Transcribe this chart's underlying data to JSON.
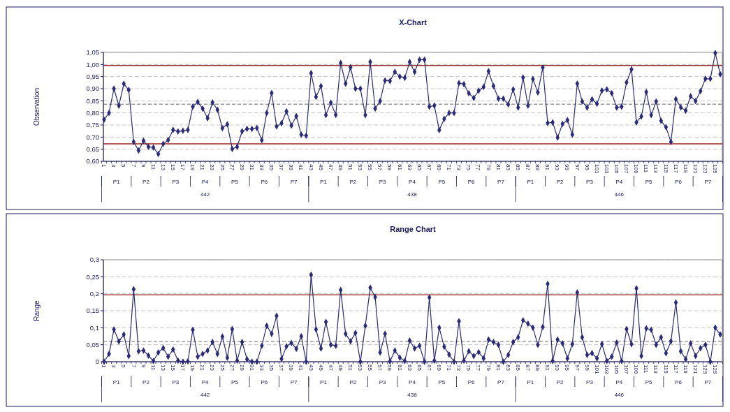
{
  "chart_data": [
    {
      "type": "line",
      "title": "X-Chart",
      "ylabel": "Observation",
      "categories": [
        "1",
        null,
        "3",
        null,
        "5",
        null,
        "7",
        null,
        "9",
        null,
        "11",
        null,
        "13",
        null,
        "15",
        null,
        "17",
        null,
        "19",
        null,
        "21",
        null,
        "23",
        null,
        "25",
        null,
        "27",
        null,
        "29",
        null,
        "31",
        null,
        "33",
        null,
        "35",
        null,
        "37",
        null,
        "39",
        null,
        "41",
        null,
        "43",
        null,
        "45",
        null,
        "47",
        null,
        "49",
        null,
        "51",
        null,
        "53",
        null,
        "55",
        null,
        "57",
        null,
        "59",
        null,
        "61",
        null,
        "63",
        null,
        "65",
        null,
        "67",
        null,
        "69",
        null,
        "71",
        null,
        "73",
        null,
        "75",
        null,
        "77",
        null,
        "79",
        null,
        "81",
        null,
        "83",
        null,
        "85",
        null,
        "87",
        null,
        "89",
        null,
        "91",
        null,
        "93",
        null,
        "95",
        null,
        "97",
        null,
        "99",
        null,
        "101",
        null,
        "103",
        null,
        "105",
        null,
        "107",
        null,
        "109",
        null,
        "111",
        null,
        "113",
        null,
        "115",
        null,
        "117",
        null,
        "119",
        null,
        "121",
        null,
        "123",
        null,
        "125",
        null
      ],
      "series": [
        {
          "color": "#2b2b7a",
          "values": [
            0.772,
            0.8,
            0.9,
            0.83,
            0.92,
            0.895,
            0.68,
            0.645,
            0.685,
            0.66,
            0.657,
            0.63,
            0.672,
            0.688,
            0.73,
            0.723,
            0.726,
            0.73,
            0.826,
            0.845,
            0.818,
            0.778,
            0.843,
            0.813,
            0.737,
            0.753,
            0.651,
            0.66,
            0.724,
            0.734,
            0.734,
            0.738,
            0.687,
            0.8,
            0.882,
            0.744,
            0.757,
            0.806,
            0.748,
            0.787,
            0.71,
            0.706,
            0.964,
            0.866,
            0.911,
            0.791,
            0.842,
            0.792,
            1.006,
            0.921,
            0.988,
            0.9,
            0.9,
            0.791,
            1.01,
            0.818,
            0.849,
            0.934,
            0.932,
            0.969,
            0.95,
            0.945,
            1.01,
            0.969,
            1.02,
            1.02,
            0.826,
            0.83,
            0.729,
            0.775,
            0.8,
            0.8,
            0.923,
            0.919,
            0.881,
            0.862,
            0.892,
            0.907,
            0.972,
            0.911,
            0.859,
            0.859,
            0.835,
            0.897,
            0.822,
            0.946,
            0.83,
            0.94,
            0.885,
            0.987,
            0.758,
            0.761,
            0.698,
            0.754,
            0.77,
            0.71,
            0.921,
            0.847,
            0.822,
            0.856,
            0.838,
            0.892,
            0.897,
            0.881,
            0.822,
            0.826,
            0.926,
            0.98,
            0.761,
            0.785,
            0.886,
            0.791,
            0.847,
            0.767,
            0.741,
            0.68,
            0.857,
            0.823,
            0.809,
            0.869,
            0.849,
            0.89,
            0.941,
            0.941,
            1.047,
            0.96
          ]
        }
      ],
      "ylim": [
        0.6,
        1.05
      ],
      "yticks": [
        {
          "value": 0.6,
          "label": "0,60"
        },
        {
          "value": 0.65,
          "label": "0,65"
        },
        {
          "value": 0.7,
          "label": "0,70"
        },
        {
          "value": 0.75,
          "label": "0,75"
        },
        {
          "value": 0.8,
          "label": "0,80"
        },
        {
          "value": 0.85,
          "label": "0,85"
        },
        {
          "value": 0.9,
          "label": "0,90"
        },
        {
          "value": 0.95,
          "label": "0,95"
        },
        {
          "value": 1.0,
          "label": "1,00"
        },
        {
          "value": 1.05,
          "label": "1,05"
        }
      ],
      "ref_lines": [
        {
          "axis": "y",
          "value": 0.996,
          "color": "#a02828",
          "line_style": "solid"
        },
        {
          "axis": "y",
          "value": 0.672,
          "color": "#a02828",
          "line_style": "solid"
        },
        {
          "axis": "y",
          "value": 0.836,
          "color": "#9a9a9a",
          "line_style": "dashed"
        }
      ],
      "grid": "y",
      "marker": "diamond",
      "line_style": "solid",
      "annotations": [
        "P1",
        "P2",
        "P3",
        "P4",
        "P5",
        "P6",
        "P7",
        "P1",
        "P2",
        "P3",
        "P4",
        "P5",
        "P6",
        "P7",
        "P1",
        "P2",
        "P3",
        "P4",
        "P5",
        "P6",
        "P7",
        "442",
        "438",
        "446"
      ]
    },
    {
      "type": "line",
      "title": "Range Chart",
      "ylabel": "Range",
      "categories": [
        "1",
        null,
        "3",
        null,
        "5",
        null,
        "7",
        null,
        "9",
        null,
        "11",
        null,
        "13",
        null,
        "15",
        null,
        "17",
        null,
        "19",
        null,
        "21",
        null,
        "23",
        null,
        "25",
        null,
        "27",
        null,
        "29",
        null,
        "31",
        null,
        "33",
        null,
        "35",
        null,
        "37",
        null,
        "39",
        null,
        "41",
        null,
        "43",
        null,
        "45",
        null,
        "47",
        null,
        "49",
        null,
        "51",
        null,
        "53",
        null,
        "55",
        null,
        "57",
        null,
        "59",
        null,
        "61",
        null,
        "63",
        null,
        "65",
        null,
        "67",
        null,
        "69",
        null,
        "71",
        null,
        "73",
        null,
        "75",
        null,
        "77",
        null,
        "79",
        null,
        "81",
        null,
        "83",
        null,
        "85",
        null,
        "87",
        null,
        "89",
        null,
        "91",
        null,
        "93",
        null,
        "95",
        null,
        "97",
        null,
        "99",
        null,
        "101",
        null,
        "103",
        null,
        "105",
        null,
        "107",
        null,
        "109",
        null,
        "111",
        null,
        "113",
        null,
        "115",
        null,
        "117",
        null,
        "119",
        null,
        "121",
        null,
        "123",
        null,
        "125",
        null
      ],
      "series": [
        {
          "color": "#2b2b7a",
          "values": [
            0,
            0.023,
            0.095,
            0.06,
            0.08,
            0.017,
            0.213,
            0.031,
            0.033,
            0.018,
            0.002,
            0.027,
            0.04,
            0.015,
            0.036,
            0.003,
            0,
            0.001,
            0.094,
            0.015,
            0.023,
            0.033,
            0.058,
            0.023,
            0.074,
            0.012,
            0.096,
            0.003,
            0.058,
            0.007,
            0,
            0,
            0.047,
            0.106,
            0.082,
            0.135,
            0.008,
            0.045,
            0.055,
            0.038,
            0.075,
            0,
            0.256,
            0.095,
            0.039,
            0.117,
            0.05,
            0.047,
            0.211,
            0.082,
            0.06,
            0.085,
            0,
            0.106,
            0.218,
            0.19,
            0.027,
            0.082,
            0.001,
            0.033,
            0.012,
            0.002,
            0.062,
            0.039,
            0.047,
            0,
            0.189,
            0.003,
            0.1,
            0.044,
            0.021,
            0,
            0.119,
            0.003,
            0.031,
            0.017,
            0.028,
            0.01,
            0.065,
            0.058,
            0.05,
            0,
            0.02,
            0.058,
            0.072,
            0.122,
            0.112,
            0.1,
            0.05,
            0.102,
            0.229,
            0.002,
            0.065,
            0.054,
            0.01,
            0.052,
            0.204,
            0.072,
            0.02,
            0.025,
            0.01,
            0.052,
            0.002,
            0.015,
            0.056,
            0.002,
            0.096,
            0.052,
            0.216,
            0.017,
            0.098,
            0.094,
            0.05,
            0.072,
            0.025,
            0.06,
            0.174,
            0.031,
            0.007,
            0.054,
            0.017,
            0.04,
            0.05,
            0,
            0.1,
            0.08
          ]
        }
      ],
      "ylim": [
        0,
        0.3
      ],
      "yticks": [
        0,
        {
          "value": 0.05,
          "label": "0,05"
        },
        {
          "value": 0.1,
          "label": "0,1"
        },
        {
          "value": 0.15,
          "label": "0,15"
        },
        {
          "value": 0.2,
          "label": "0,2"
        },
        {
          "value": 0.25,
          "label": "0,25"
        },
        {
          "value": 0.3,
          "label": "0,3"
        }
      ],
      "ref_lines": [
        {
          "axis": "y",
          "value": 0.197,
          "color": "#a02828",
          "line_style": "solid"
        },
        {
          "axis": "y",
          "value": 0.06,
          "color": "#9a9a9a",
          "line_style": "dashed"
        }
      ],
      "grid": "y",
      "marker": "diamond",
      "line_style": "solid",
      "annotations": [
        "P1",
        "P2",
        "P3",
        "P4",
        "P5",
        "P6",
        "P7",
        "P1",
        "P2",
        "P3",
        "P4",
        "P5",
        "P6",
        "P7",
        "P1",
        "P2",
        "P3",
        "P4",
        "P5",
        "P6",
        "P7",
        "442",
        "438",
        "446"
      ]
    }
  ]
}
